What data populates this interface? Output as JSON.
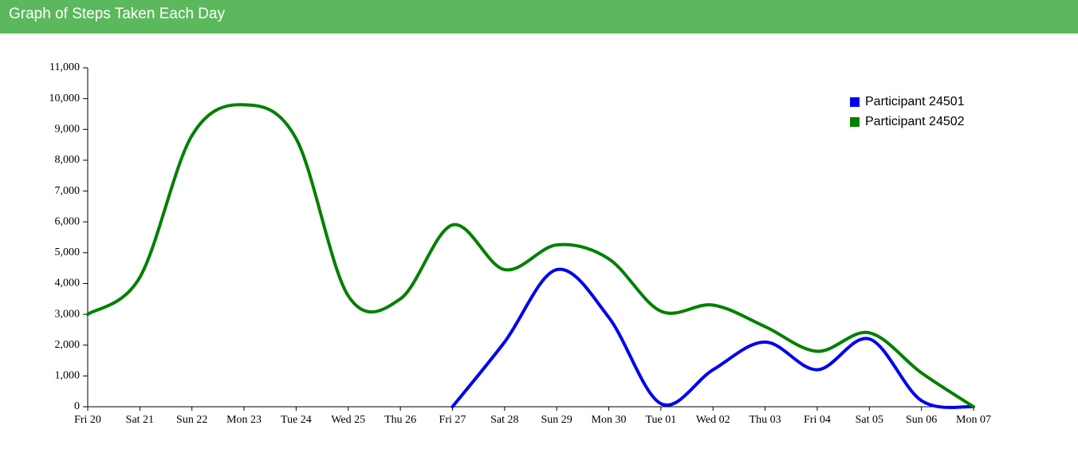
{
  "chart_data": {
    "type": "line",
    "title": "Graph of Steps Taken Each Day",
    "categories": [
      "Fri 20",
      "Sat 21",
      "Sun 22",
      "Mon 23",
      "Tue 24",
      "Wed 25",
      "Thu 26",
      "Fri 27",
      "Sat 28",
      "Sun 29",
      "Mon 30",
      "Tue 01",
      "Wed 02",
      "Thu 03",
      "Fri 04",
      "Sat 05",
      "Sun 06",
      "Mon 07"
    ],
    "series": [
      {
        "name": "Participant 24501",
        "color": "#0000ee",
        "values": [
          null,
          null,
          null,
          null,
          null,
          null,
          null,
          0,
          2100,
          4450,
          2900,
          100,
          1200,
          2100,
          1200,
          2200,
          200,
          0
        ]
      },
      {
        "name": "Participant 24502",
        "color": "#008000",
        "values": [
          3000,
          4200,
          8800,
          9800,
          8700,
          3600,
          3500,
          5900,
          4450,
          5250,
          4800,
          3100,
          3300,
          2600,
          1800,
          2400,
          1100,
          0
        ]
      }
    ],
    "ylim": [
      0,
      11000
    ],
    "yticks": [
      0,
      {
        "value": 1000,
        "label": "1,000"
      },
      {
        "value": 2000,
        "label": "2,000"
      },
      {
        "value": 3000,
        "label": "3,000"
      },
      {
        "value": 4000,
        "label": "4,000"
      },
      {
        "value": 5000,
        "label": "5,000"
      },
      {
        "value": 6000,
        "label": "6,000"
      },
      {
        "value": 7000,
        "label": "7,000"
      },
      {
        "value": 8000,
        "label": "8,000"
      },
      {
        "value": 9000,
        "label": "9,000"
      },
      {
        "value": 10000,
        "label": "10,000"
      },
      {
        "value": 11000,
        "label": "11,000"
      }
    ],
    "legend": "top-right"
  }
}
